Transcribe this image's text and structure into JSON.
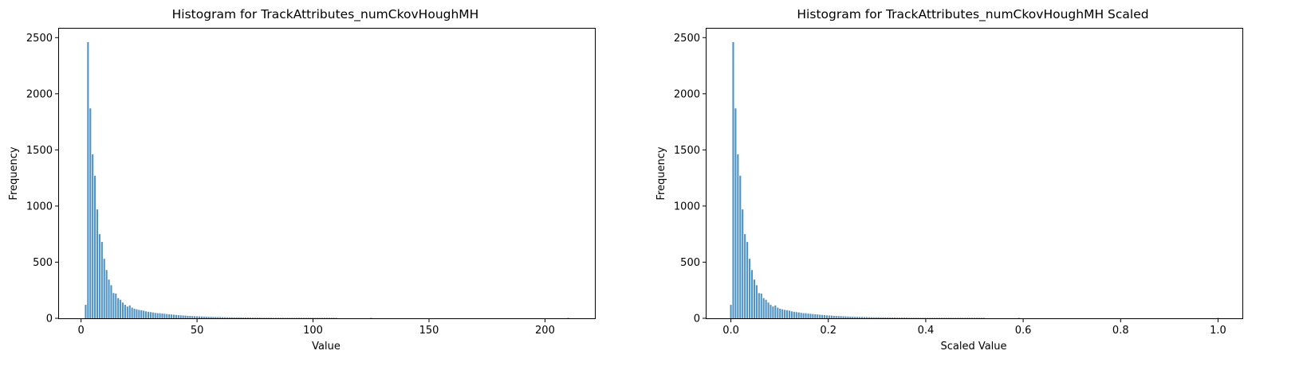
{
  "chart_data": [
    {
      "type": "bar",
      "title": "Histogram for TrackAttributes_numCkovHoughMH",
      "xlabel": "Value",
      "ylabel": "Frequency",
      "xlim": [
        -9.5,
        221.5
      ],
      "ylim": [
        0,
        2580
      ],
      "xticks": [
        0,
        50,
        100,
        150,
        200
      ],
      "yticks": [
        0,
        500,
        1000,
        1500,
        2000,
        2500
      ],
      "grid": false,
      "bar_color": "#4e93c3",
      "x": [
        2,
        3,
        4,
        5,
        6,
        7,
        8,
        9,
        10,
        11,
        12,
        13,
        14,
        15,
        16,
        17,
        18,
        19,
        20,
        21,
        22,
        23,
        24,
        25,
        26,
        27,
        28,
        29,
        30,
        31,
        32,
        33,
        34,
        35,
        36,
        37,
        38,
        39,
        40,
        41,
        42,
        43,
        44,
        45,
        46,
        47,
        48,
        49,
        50,
        51,
        52,
        53,
        54,
        55,
        56,
        57,
        58,
        59,
        60,
        61,
        62,
        63,
        64,
        65,
        66,
        67,
        68,
        69,
        70,
        71,
        72,
        73,
        74,
        75,
        76,
        77,
        78,
        79,
        80,
        81,
        82,
        83,
        84,
        85,
        86,
        87,
        88,
        89,
        90,
        91,
        92,
        93,
        94,
        95,
        96,
        97,
        98,
        99,
        100,
        101,
        102,
        103,
        104,
        105,
        106,
        107,
        108,
        109,
        110,
        125,
        210
      ],
      "values": [
        120,
        2460,
        1870,
        1460,
        1270,
        970,
        750,
        680,
        530,
        430,
        345,
        295,
        225,
        220,
        180,
        165,
        140,
        120,
        105,
        115,
        95,
        85,
        80,
        75,
        72,
        68,
        62,
        58,
        55,
        52,
        48,
        46,
        45,
        42,
        40,
        38,
        36,
        34,
        32,
        30,
        28,
        26,
        25,
        24,
        22,
        21,
        20,
        19,
        18,
        17,
        16,
        15,
        14,
        13,
        13,
        12,
        12,
        11,
        11,
        10,
        10,
        9,
        9,
        9,
        8,
        8,
        8,
        8,
        7,
        7,
        7,
        6,
        6,
        6,
        6,
        6,
        5,
        5,
        5,
        5,
        5,
        4,
        4,
        4,
        4,
        4,
        4,
        3,
        3,
        3,
        3,
        3,
        3,
        3,
        3,
        3,
        2,
        2,
        2,
        2,
        2,
        2,
        2,
        2,
        2,
        2,
        2,
        2,
        2,
        3,
        2
      ]
    },
    {
      "type": "bar",
      "title": "Histogram for TrackAttributes_numCkovHoughMH Scaled",
      "xlabel": "Scaled Value",
      "ylabel": "Frequency",
      "xlim": [
        -0.05,
        1.05
      ],
      "ylim": [
        0,
        2580
      ],
      "xticks": [
        0.0,
        0.2,
        0.4,
        0.6,
        0.8,
        1.0
      ],
      "xtick_labels": [
        "0.0",
        "0.2",
        "0.4",
        "0.6",
        "0.8",
        "1.0"
      ],
      "yticks": [
        0,
        500,
        1000,
        1500,
        2000,
        2500
      ],
      "grid": false,
      "bar_color": "#4e93c3",
      "x": [
        0.0,
        0.0048,
        0.0096,
        0.0144,
        0.0192,
        0.024,
        0.0288,
        0.0337,
        0.0385,
        0.0433,
        0.0481,
        0.0529,
        0.0577,
        0.0625,
        0.0673,
        0.0721,
        0.0769,
        0.0817,
        0.0865,
        0.0913,
        0.0962,
        0.101,
        0.1058,
        0.1106,
        0.1154,
        0.1202,
        0.125,
        0.1298,
        0.1346,
        0.1394,
        0.1442,
        0.149,
        0.1538,
        0.1587,
        0.1635,
        0.1683,
        0.1731,
        0.1779,
        0.1827,
        0.1875,
        0.1923,
        0.1971,
        0.2019,
        0.2067,
        0.2115,
        0.2163,
        0.2212,
        0.226,
        0.2308,
        0.2356,
        0.2404,
        0.2452,
        0.25,
        0.2548,
        0.2596,
        0.2644,
        0.2692,
        0.274,
        0.2788,
        0.2837,
        0.2885,
        0.2933,
        0.2981,
        0.3029,
        0.3077,
        0.3125,
        0.3173,
        0.3221,
        0.3269,
        0.3317,
        0.3365,
        0.3413,
        0.3462,
        0.351,
        0.3558,
        0.3606,
        0.3654,
        0.3702,
        0.375,
        0.3798,
        0.3846,
        0.3894,
        0.3942,
        0.399,
        0.4038,
        0.4087,
        0.4135,
        0.4183,
        0.4231,
        0.4279,
        0.4327,
        0.4375,
        0.4423,
        0.4471,
        0.4519,
        0.4567,
        0.4615,
        0.4663,
        0.4712,
        0.476,
        0.4808,
        0.4856,
        0.4904,
        0.4952,
        0.5,
        0.5048,
        0.5096,
        0.5144,
        0.5192,
        0.5913,
        1.0
      ],
      "values": [
        120,
        2460,
        1870,
        1460,
        1270,
        970,
        750,
        680,
        530,
        430,
        345,
        295,
        225,
        220,
        180,
        165,
        140,
        120,
        105,
        115,
        95,
        85,
        80,
        75,
        72,
        68,
        62,
        58,
        55,
        52,
        48,
        46,
        45,
        42,
        40,
        38,
        36,
        34,
        32,
        30,
        28,
        26,
        25,
        24,
        22,
        21,
        20,
        19,
        18,
        17,
        16,
        15,
        14,
        13,
        13,
        12,
        12,
        11,
        11,
        10,
        10,
        9,
        9,
        9,
        8,
        8,
        8,
        8,
        7,
        7,
        7,
        6,
        6,
        6,
        6,
        6,
        5,
        5,
        5,
        5,
        5,
        4,
        4,
        4,
        4,
        4,
        4,
        3,
        3,
        3,
        3,
        3,
        3,
        3,
        3,
        3,
        2,
        2,
        2,
        2,
        2,
        2,
        2,
        2,
        2,
        2,
        2,
        2,
        2,
        3,
        2
      ]
    }
  ]
}
